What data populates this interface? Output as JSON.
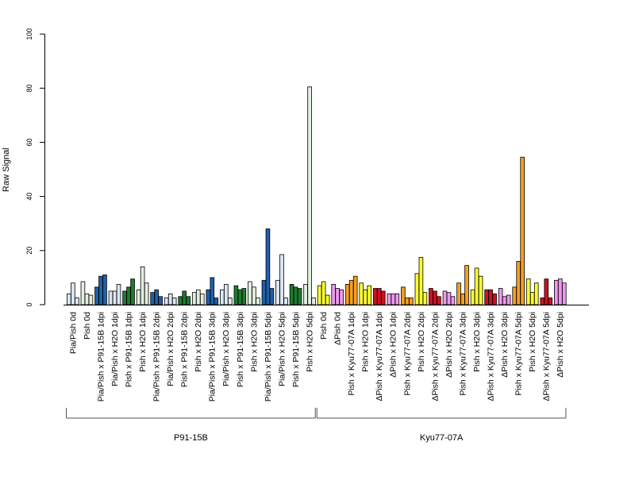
{
  "chart_data": {
    "type": "bar",
    "title": "",
    "ylabel": "Raw Signal",
    "xlabel": "",
    "ylim": [
      0,
      100
    ],
    "yticks": [
      0,
      20,
      40,
      60,
      80,
      100
    ],
    "grid": false,
    "legend": "none",
    "categories": [
      "Pia/Pish 0d",
      "Pish 0d",
      "Pia/Pish x P91-15B 1dpi",
      "Pia/Pish x H2O 1dpi",
      "Pish x P91-15B 1dpi",
      "Pish x H2O 1dpi",
      "Pia/Pish x P91-15B 2dpi",
      "Pia/Pish x H2O 2dpi",
      "Pish x P91-15B 2dpi",
      "Pish x H2O 2dpi",
      "Pia/Pish x P91-15B 3dpi",
      "Pia/Pish x H2O 3dpi",
      "Pish x P91-15B 3dpi",
      "Pish x H2O 3dpi",
      "Pia/Pish x P91-15B 5dpi",
      "Pia/Pish x H2O 5dpi",
      "Pish x P91-15B 5dpi",
      "Pish x H2O 5dpi",
      "Pish 0d",
      "ΔPish 0d",
      "Pish x Kyu77-07A 1dpi",
      "Pish x H2O 1dpi",
      "ΔPish x Kyu77-07A 1dpi",
      "ΔPish x H2O 1dpi",
      "Pish x Kyu77-07A 2dpi",
      "Pish x H2O 2dpi",
      "ΔPish x Kyu77-07A 2dpi",
      "ΔPish x H2O 2dpi",
      "Pish x Kyu77-07A 3dpi",
      "Pish x H2O 3dpi",
      "ΔPish x Kyu77-07A 3dpi",
      "ΔPish x H2O 3dpi",
      "Pish x Kyu77-07A 5dpi",
      "Pish x H2O 5dpi",
      "ΔPish x Kyu77-07A 5dpi",
      "ΔPish x H2O 5dpi"
    ],
    "replicate_values": [
      [
        4.0,
        8.0,
        2.5
      ],
      [
        8.5,
        4.0,
        3.5
      ],
      [
        6.5,
        10.5,
        11.0
      ],
      [
        5.0,
        5.0,
        7.5
      ],
      [
        5.0,
        6.5,
        9.5
      ],
      [
        5.5,
        14.0,
        8.0
      ],
      [
        4.5,
        5.5,
        3.0
      ],
      [
        2.5,
        4.0,
        2.5
      ],
      [
        3.0,
        5.0,
        3.0
      ],
      [
        4.5,
        5.5,
        4.0
      ],
      [
        5.5,
        10.0,
        2.5
      ],
      [
        5.5,
        7.5,
        2.5
      ],
      [
        7.0,
        5.5,
        6.0
      ],
      [
        8.5,
        6.5,
        2.5
      ],
      [
        9.0,
        28.0,
        6.0
      ],
      [
        9.0,
        18.5,
        2.5
      ],
      [
        7.5,
        6.5,
        6.0
      ],
      [
        7.5,
        80.5,
        2.5
      ],
      [
        7.0,
        8.5,
        3.5
      ],
      [
        7.5,
        6.0,
        5.5
      ],
      [
        7.5,
        9.0,
        10.5
      ],
      [
        8.0,
        5.5,
        7.0
      ],
      [
        6.0,
        6.0,
        5.0
      ],
      [
        4.0,
        4.0,
        4.0
      ],
      [
        6.5,
        2.5,
        2.5
      ],
      [
        11.5,
        17.5,
        4.5
      ],
      [
        6.0,
        5.0,
        3.0
      ],
      [
        5.0,
        4.5,
        3.0
      ],
      [
        8.0,
        4.0,
        14.5
      ],
      [
        5.5,
        13.5,
        10.5
      ],
      [
        5.5,
        5.5,
        4.0
      ],
      [
        6.0,
        3.0,
        3.5
      ],
      [
        6.5,
        16.0,
        54.5
      ],
      [
        9.5,
        4.5,
        8.0
      ],
      [
        2.5,
        9.5,
        2.5
      ],
      [
        9.0,
        9.5,
        8.0
      ]
    ],
    "bar_colors": [
      "#dce6f2",
      "#e3efe0",
      "#2060a8",
      "#dce6f2",
      "#1e7a2e",
      "#e3efe0",
      "#2060a8",
      "#dce6f2",
      "#1e7a2e",
      "#e3efe0",
      "#2060a8",
      "#dce6f2",
      "#1e7a2e",
      "#e3efe0",
      "#2060a8",
      "#dce6f2",
      "#1e7a2e",
      "#e3efe0",
      "#ffff33",
      "#ee99ee",
      "#f5a020",
      "#ffff33",
      "#d01020",
      "#ee99ee",
      "#f5a020",
      "#ffff33",
      "#d01020",
      "#ee99ee",
      "#f5a020",
      "#ffff33",
      "#d01020",
      "#ee99ee",
      "#f5a020",
      "#ffff33",
      "#d01020",
      "#ee99ee"
    ],
    "groups": [
      {
        "label": "P91-15B",
        "from": 0,
        "to": 17
      },
      {
        "label": "Kyu77-07A",
        "from": 18,
        "to": 35
      }
    ]
  }
}
